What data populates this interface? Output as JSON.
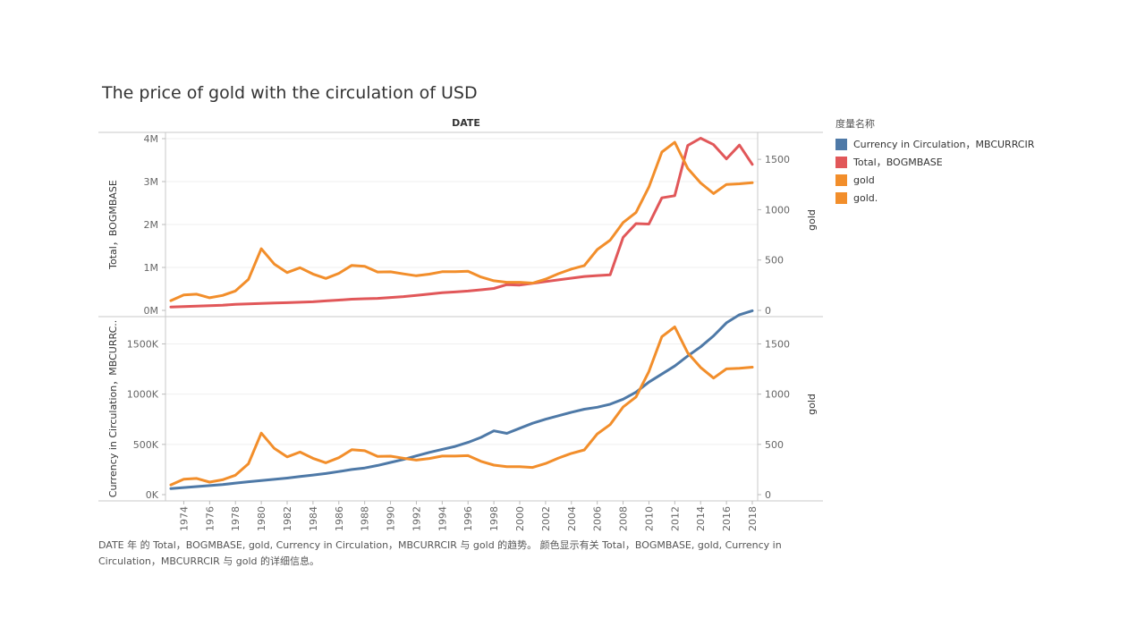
{
  "title": "The price of gold with the circulation of USD",
  "caption": "DATE 年 的 Total，BOGMBASE, gold, Currency in Circulation，MBCURRCIR 与 gold 的趋势。 颜色显示有关 Total，BOGMBASE, gold, Currency in Circulation，MBCURRCIR 与 gold 的详细信息。",
  "legend": {
    "title": "度量名称",
    "items": [
      {
        "label": "Currency in Circulation，MBCURRCIR",
        "color": "#4e79a7"
      },
      {
        "label": "Total，BOGMBASE",
        "color": "#e15759"
      },
      {
        "label": "gold",
        "color": "#f28e2b"
      },
      {
        "label": "gold.",
        "color": "#f28e2b"
      }
    ]
  },
  "chart_data": {
    "type": "line",
    "xlabel": "DATE",
    "x": [
      1973,
      1974,
      1975,
      1976,
      1977,
      1978,
      1979,
      1980,
      1981,
      1982,
      1983,
      1984,
      1985,
      1986,
      1987,
      1988,
      1989,
      1990,
      1991,
      1992,
      1993,
      1994,
      1995,
      1996,
      1997,
      1998,
      1999,
      2000,
      2001,
      2002,
      2003,
      2004,
      2005,
      2006,
      2007,
      2008,
      2009,
      2010,
      2011,
      2012,
      2013,
      2014,
      2015,
      2016,
      2017,
      2018
    ],
    "x_ticks": [
      "1974",
      "1976",
      "1978",
      "1980",
      "1982",
      "1984",
      "1986",
      "1988",
      "1990",
      "1992",
      "1994",
      "1996",
      "1998",
      "2000",
      "2002",
      "2004",
      "2006",
      "2008",
      "2010",
      "2012",
      "2014",
      "2016",
      "2018"
    ],
    "panels": [
      {
        "ylabel_left": "Total，BOGMBASE",
        "ylabel_right": "gold",
        "left_ticks": [
          "0M",
          "1M",
          "2M",
          "3M",
          "4M"
        ],
        "left_tick_values": [
          0,
          1000000,
          2000000,
          3000000,
          4000000
        ],
        "ylim_left": [
          0,
          4000000
        ],
        "right_ticks": [
          "0",
          "500",
          "1000",
          "1500"
        ],
        "right_tick_values": [
          0,
          500,
          1000,
          1500
        ],
        "ylim_right": [
          0,
          1750
        ],
        "series": [
          {
            "name": "Total，BOGMBASE",
            "axis": "left",
            "color": "#e15759",
            "values": [
              80000,
              90000,
              100000,
              110000,
              120000,
              140000,
              150000,
              160000,
              170000,
              180000,
              190000,
              200000,
              220000,
              240000,
              260000,
              270000,
              280000,
              300000,
              320000,
              350000,
              380000,
              410000,
              430000,
              450000,
              480000,
              510000,
              600000,
              590000,
              630000,
              670000,
              710000,
              750000,
              790000,
              810000,
              830000,
              1700000,
              2020000,
              2010000,
              2620000,
              2670000,
              3840000,
              4010000,
              3860000,
              3530000,
              3850000,
              3400000
            ]
          },
          {
            "name": "gold",
            "axis": "right",
            "color": "#f28e2b",
            "values": [
              97,
              154,
              161,
              125,
              148,
              193,
              307,
              612,
              460,
              376,
              424,
              361,
              317,
              368,
              447,
              437,
              381,
              383,
              362,
              344,
              360,
              384,
              384,
              388,
              331,
              294,
              279,
              279,
              271,
              310,
              364,
              410,
              445,
              604,
              697,
              872,
              972,
              1225,
              1572,
              1669,
              1411,
              1266,
              1160,
              1251,
              1257,
              1268
            ]
          }
        ]
      },
      {
        "ylabel_left": "Currency in Circulation，MBCURRC..",
        "ylabel_right": "gold",
        "left_ticks": [
          "0K",
          "500K",
          "1000K",
          "1500K"
        ],
        "left_tick_values": [
          0,
          500000,
          1000000,
          1500000
        ],
        "ylim_left": [
          0,
          1700000
        ],
        "right_ticks": [
          "0",
          "500",
          "1000",
          "1500"
        ],
        "right_tick_values": [
          0,
          500,
          1000,
          1500
        ],
        "ylim_right": [
          0,
          1700
        ],
        "series": [
          {
            "name": "Currency in Circulation，MBCURRCIR",
            "axis": "left",
            "color": "#4e79a7",
            "values": [
              60000,
              70000,
              80000,
              90000,
              100000,
              115000,
              128000,
              140000,
              152000,
              165000,
              180000,
              195000,
              210000,
              230000,
              250000,
              265000,
              290000,
              320000,
              350000,
              385000,
              420000,
              450000,
              480000,
              520000,
              570000,
              635000,
              610000,
              660000,
              710000,
              750000,
              785000,
              820000,
              850000,
              870000,
              900000,
              950000,
              1020000,
              1120000,
              1200000,
              1280000,
              1380000,
              1470000,
              1580000,
              1710000,
              1790000,
              1830000
            ]
          },
          {
            "name": "gold.",
            "axis": "right",
            "color": "#f28e2b",
            "values": [
              97,
              154,
              161,
              125,
              148,
              193,
              307,
              612,
              460,
              376,
              424,
              361,
              317,
              368,
              447,
              437,
              381,
              383,
              362,
              344,
              360,
              384,
              384,
              388,
              331,
              294,
              279,
              279,
              271,
              310,
              364,
              410,
              445,
              604,
              697,
              872,
              972,
              1225,
              1572,
              1669,
              1411,
              1266,
              1160,
              1251,
              1257,
              1268
            ]
          }
        ]
      }
    ]
  }
}
